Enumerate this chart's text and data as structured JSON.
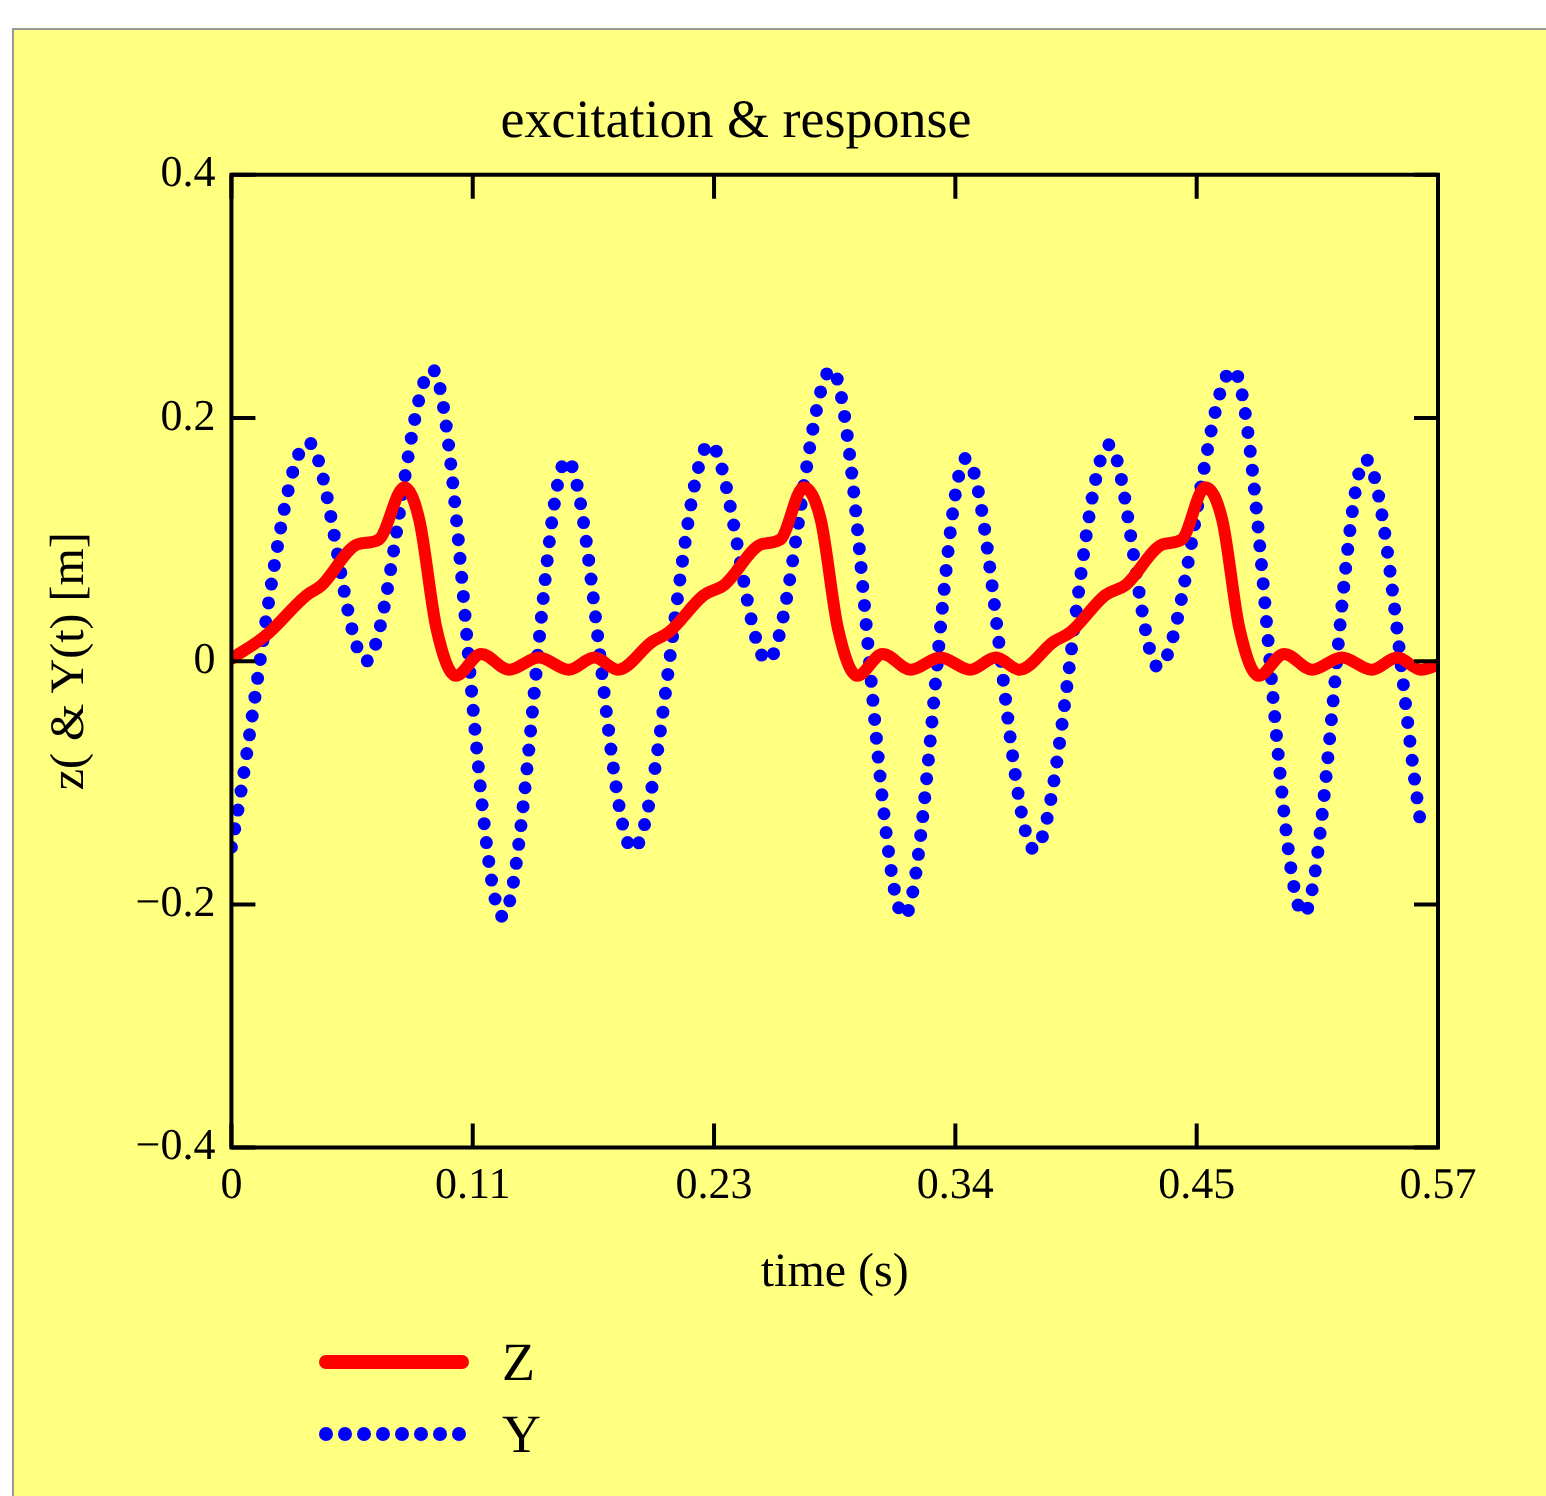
{
  "chart_data": {
    "type": "line",
    "title": "excitation & response",
    "xlabel": "time (s)",
    "ylabel": "z( & Y(t) [m]",
    "xlim": [
      0,
      0.565
    ],
    "xticks": [
      0,
      {
        "value": 0.113,
        "label": "0.11"
      },
      {
        "value": 0.226,
        "label": "0.23"
      },
      {
        "value": 0.339,
        "label": "0.34"
      },
      {
        "value": 0.452,
        "label": "0.45"
      },
      {
        "value": 0.565,
        "label": "0.57"
      }
    ],
    "ylim": [
      -0.4,
      0.4
    ],
    "yticks": [
      {
        "value": -0.4,
        "label": "−0.4"
      },
      {
        "value": -0.2,
        "label": "−0.2"
      },
      0,
      0.2,
      0.4
    ],
    "grid": false,
    "legend": "bottom left",
    "marker": "none",
    "series": [
      {
        "name": "Z",
        "color": "#ff0000",
        "line_style": "solid",
        "x": [
          0,
          0.016,
          0.035,
          0.042,
          0.059,
          0.069,
          0.081,
          0.088,
          0.096,
          0.105,
          0.117,
          0.13,
          0.144,
          0.158,
          0.17,
          0.181,
          0.197,
          0.205,
          0.221,
          0.231,
          0.248,
          0.257,
          0.268,
          0.276,
          0.284,
          0.293,
          0.305,
          0.318,
          0.332,
          0.346,
          0.358,
          0.369,
          0.385,
          0.393,
          0.409,
          0.419,
          0.436,
          0.445,
          0.456,
          0.464,
          0.472,
          0.481,
          0.493,
          0.506,
          0.52,
          0.534,
          0.546,
          0.557,
          0.565
        ],
        "values": [
          0.002,
          0.021,
          0.054,
          0.062,
          0.096,
          0.1,
          0.143,
          0.116,
          0.027,
          -0.012,
          0.006,
          -0.007,
          0.003,
          -0.007,
          0.003,
          -0.007,
          0.016,
          0.024,
          0.054,
          0.063,
          0.096,
          0.1,
          0.143,
          0.116,
          0.027,
          -0.012,
          0.006,
          -0.007,
          0.003,
          -0.007,
          0.003,
          -0.007,
          0.016,
          0.024,
          0.054,
          0.063,
          0.096,
          0.1,
          0.143,
          0.116,
          0.027,
          -0.012,
          0.006,
          -0.007,
          0.003,
          -0.007,
          0.003,
          -0.007,
          -0.003
        ]
      },
      {
        "name": "Y",
        "color": "#0000ff",
        "line_style": "dotted",
        "x": [
          0,
          0.036,
          0.063,
          0.094,
          0.127,
          0.157,
          0.188,
          0.224,
          0.251,
          0.281,
          0.315,
          0.344,
          0.376,
          0.411,
          0.434,
          0.469,
          0.502,
          0.531,
          0.557
        ],
        "values": [
          -0.153,
          0.18,
          0,
          0.24,
          -0.21,
          0.166,
          -0.155,
          0.179,
          0,
          0.24,
          -0.21,
          0.167,
          -0.155,
          0.178,
          -0.005,
          0.24,
          -0.208,
          0.166,
          -0.135
        ]
      }
    ]
  }
}
